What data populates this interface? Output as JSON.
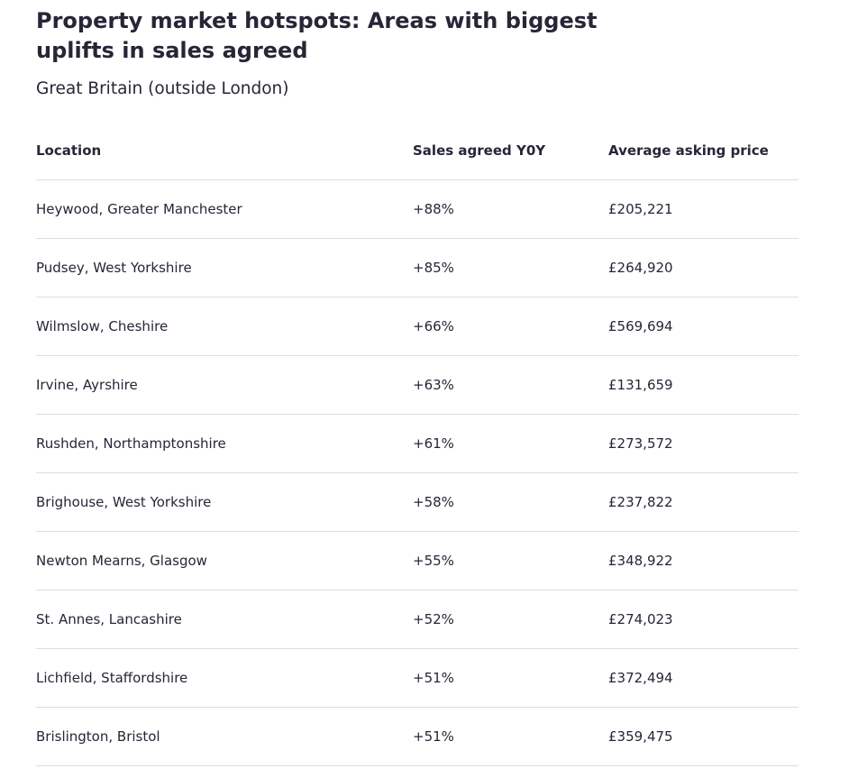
{
  "title": "Property market hotspots: Areas with biggest uplifts in sales agreed",
  "subtitle": "Great Britain (outside London)",
  "table": {
    "headers": [
      "Location",
      "Sales agreed Y0Y",
      "Average asking price"
    ],
    "rows": [
      [
        "Heywood, Greater Manchester",
        "+88%",
        "£205,221"
      ],
      [
        "Pudsey, West Yorkshire",
        "+85%",
        "£264,920"
      ],
      [
        "Wilmslow, Cheshire",
        "+66%",
        "£569,694"
      ],
      [
        "Irvine, Ayrshire",
        "+63%",
        "£131,659"
      ],
      [
        "Rushden, Northamptonshire",
        "+61%",
        "£273,572"
      ],
      [
        "Brighouse, West Yorkshire",
        "+58%",
        "£237,822"
      ],
      [
        "Newton Mearns, Glasgow",
        "+55%",
        "£348,922"
      ],
      [
        "St. Annes, Lancashire",
        "+52%",
        "£274,023"
      ],
      [
        "Lichfield, Staffordshire",
        "+51%",
        "£372,494"
      ],
      [
        "Brislington, Bristol",
        "+51%",
        "£359,475"
      ]
    ]
  }
}
